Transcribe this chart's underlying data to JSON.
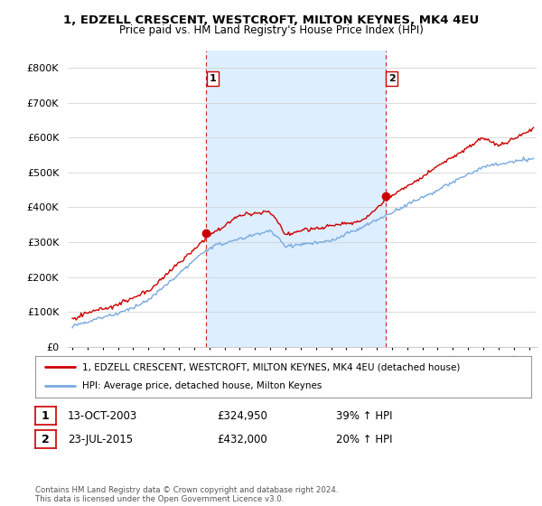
{
  "title_line1": "1, EDZELL CRESCENT, WESTCROFT, MILTON KEYNES, MK4 4EU",
  "title_line2": "Price paid vs. HM Land Registry's House Price Index (HPI)",
  "ylim": [
    0,
    850000
  ],
  "yticks": [
    0,
    100000,
    200000,
    300000,
    400000,
    500000,
    600000,
    700000,
    800000
  ],
  "ytick_labels": [
    "£0",
    "£100K",
    "£200K",
    "£300K",
    "£400K",
    "£500K",
    "£600K",
    "£700K",
    "£800K"
  ],
  "xlim_left": 1994.7,
  "xlim_right": 2025.5,
  "sale1_date": 2003.79,
  "sale1_price": 324950,
  "sale1_label": "1",
  "sale2_date": 2015.56,
  "sale2_price": 432000,
  "sale2_label": "2",
  "hpi_line_color": "#7aaadd",
  "price_line_color": "#cc0000",
  "sale_marker_color": "#cc0000",
  "vline_color": "#cc0000",
  "shade_color": "#ddeeff",
  "legend_line1": "1, EDZELL CRESCENT, WESTCROFT, MILTON KEYNES, MK4 4EU (detached house)",
  "legend_line2": "HPI: Average price, detached house, Milton Keynes",
  "table_row1": [
    "1",
    "13-OCT-2003",
    "£324,950",
    "39% ↑ HPI"
  ],
  "table_row2": [
    "2",
    "23-JUL-2015",
    "£432,000",
    "20% ↑ HPI"
  ],
  "footer": "Contains HM Land Registry data © Crown copyright and database right 2024.\nThis data is licensed under the Open Government Licence v3.0.",
  "bg_color": "#ffffff",
  "grid_color": "#cccccc"
}
